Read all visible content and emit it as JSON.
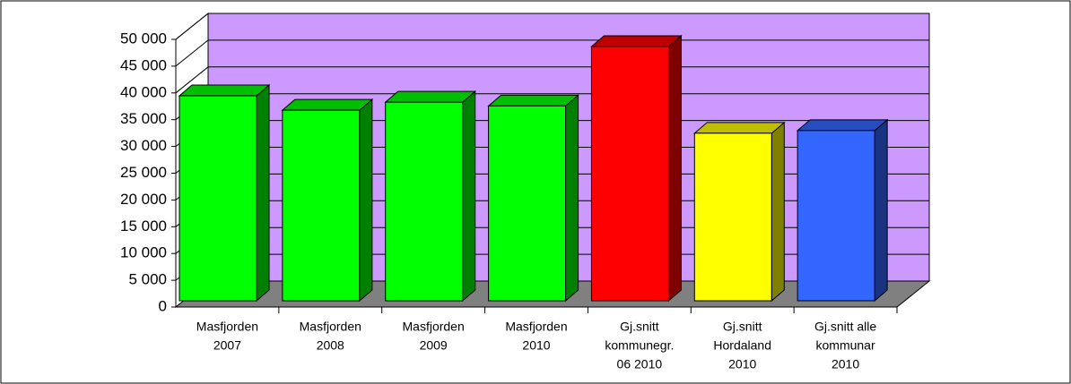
{
  "chart_data": {
    "type": "bar3d",
    "categories": [
      [
        "Masfjorden",
        "2007"
      ],
      [
        "Masfjorden",
        "2008"
      ],
      [
        "Masfjorden",
        "2009"
      ],
      [
        "Masfjorden",
        "2010"
      ],
      [
        "Gj.snitt",
        "kommunegr.",
        "06 2010"
      ],
      [
        "Gj.snitt",
        "Hordaland",
        "2010"
      ],
      [
        "Gj.snitt alle",
        "kommunar",
        "2010"
      ]
    ],
    "values": [
      38300,
      35600,
      37100,
      36400,
      47500,
      31300,
      31800
    ],
    "colors": [
      "#00ff00",
      "#00ff00",
      "#00ff00",
      "#00ff00",
      "#ff0000",
      "#ffff00",
      "#3366ff"
    ],
    "ylim": [
      0,
      50000
    ],
    "yticks": [
      0,
      {
        "value": 5000,
        "label": "5 000"
      },
      {
        "value": 10000,
        "label": "10 000"
      },
      {
        "value": 15000,
        "label": "15 000"
      },
      {
        "value": 20000,
        "label": "20 000"
      },
      {
        "value": 25000,
        "label": "25 000"
      },
      {
        "value": 30000,
        "label": "30 000"
      },
      {
        "value": 35000,
        "label": "35 000"
      },
      {
        "value": 40000,
        "label": "40 000"
      },
      {
        "value": 45000,
        "label": "45 000"
      },
      {
        "value": 50000,
        "label": "50 000"
      }
    ],
    "grid": true,
    "wall_color": "#cc99ff",
    "floor_color": "#808080"
  }
}
